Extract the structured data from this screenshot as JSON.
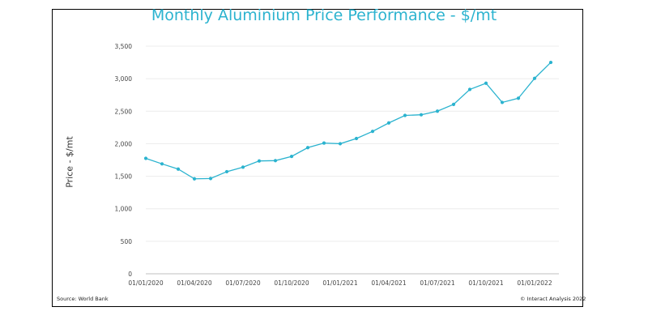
{
  "chart_data": {
    "type": "line",
    "title": "Monthly Aluminium Price Performance - $/mt",
    "ylabel": "Price - $/mt",
    "xlabel": "",
    "ylim": [
      0,
      3500
    ],
    "yticks": [
      "0",
      "500",
      "1,000",
      "1,500",
      "2,000",
      "2,500",
      "3,000",
      "3,500"
    ],
    "xticks": [
      "01/01/2020",
      "01/04/2020",
      "01/07/2020",
      "01/10/2020",
      "01/01/2021",
      "01/04/2021",
      "01/07/2021",
      "01/10/2021",
      "01/01/2022"
    ],
    "grid": true,
    "legend": "none",
    "color": "#2bb3cf",
    "series": [
      {
        "x": [
          "Jan 2020",
          "Feb 2020",
          "Mar 2020",
          "Apr 2020",
          "May 2020",
          "Jun 2020",
          "Jul 2020",
          "Aug 2020",
          "Sep 2020",
          "Oct 2020",
          "Nov 2020",
          "Dec 2020",
          "Jan 2021",
          "Feb 2021",
          "Mar 2021",
          "Apr 2021",
          "May 2021",
          "Jun 2021",
          "Jul 2021",
          "Aug 2021",
          "Sep 2021",
          "Oct 2021",
          "Nov 2021",
          "Dec 2021",
          "Jan 2022",
          "Feb 2022"
        ],
        "values": [
          1775,
          1690,
          1610,
          1460,
          1465,
          1570,
          1640,
          1735,
          1740,
          1805,
          1940,
          2010,
          2000,
          2080,
          2190,
          2320,
          2435,
          2445,
          2500,
          2605,
          2835,
          2930,
          2635,
          2700,
          3005,
          3250
        ]
      }
    ]
  },
  "footer": {
    "source": "Source: World Bank",
    "copyright": "© Interact Analysis 2022"
  }
}
